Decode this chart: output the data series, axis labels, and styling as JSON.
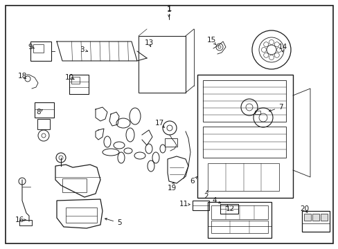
{
  "bg_color": "#ffffff",
  "border_color": "#000000",
  "fig_width": 4.89,
  "fig_height": 3.6,
  "dpi": 100,
  "line_color": "#1a1a1a",
  "label_color": "#000000",
  "border_lw": 1.2,
  "part_lw": 0.75
}
